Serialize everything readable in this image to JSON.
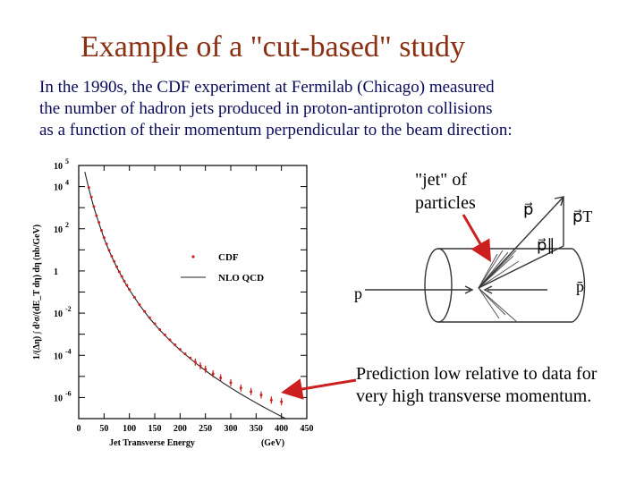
{
  "slide": {
    "title": "Example of a \"cut-based\" study",
    "intro_lines": [
      "In the 1990s, the CDF experiment at Fermilab (Chicago) measured",
      "the number of hadron jets produced in proton-antiproton collisions",
      "as a function of their momentum perpendicular to the beam direction:"
    ],
    "jet_label_lines": [
      "\"jet\" of",
      "particles"
    ],
    "prediction_lines": [
      "Prediction low relative to data for",
      "very high transverse momentum."
    ]
  },
  "colors": {
    "title": "#8b2e12",
    "intro": "#0a0a5a",
    "data": "#cc1f1f",
    "arrow": "#cc1f1f"
  },
  "sketch": {
    "labels": [
      "p",
      "p̄",
      "p⃗",
      "p⃗T",
      "p⃗∥"
    ]
  },
  "chart_data": {
    "type": "scatter",
    "xlabel": "Jet Transverse Energy",
    "xunit": "(GeV)",
    "ylabel": "1/(Δη) ∫ d²σ/(dE_T dη) dη  (nb/GeV)",
    "xlim": [
      0,
      450
    ],
    "ylim_log10": [
      -7,
      5
    ],
    "xticks": [
      0,
      50,
      100,
      150,
      200,
      250,
      300,
      350,
      400,
      450
    ],
    "ytick_labels": [
      {
        "exp": 5,
        "mant": "10",
        "sup": "5"
      },
      {
        "exp": 4,
        "mant": "10",
        "sup": "4"
      },
      {
        "exp": 2,
        "mant": "10",
        "sup": "2"
      },
      {
        "exp": 0,
        "mant": "1",
        "sup": ""
      },
      {
        "exp": -2,
        "mant": "10",
        "sup": "-2"
      },
      {
        "exp": -4,
        "mant": "10",
        "sup": "-4"
      },
      {
        "exp": -6,
        "mant": "10",
        "sup": "-6"
      }
    ],
    "legend": {
      "position": "top-right",
      "data_label": "CDF",
      "curve_label": "NLO QCD"
    },
    "series": [
      {
        "name": "CDF",
        "x": [
          20,
          25,
          30,
          35,
          40,
          45,
          50,
          55,
          60,
          65,
          70,
          75,
          80,
          85,
          90,
          95,
          100,
          110,
          120,
          130,
          140,
          150,
          160,
          170,
          180,
          190,
          200,
          210,
          220,
          230,
          240,
          250,
          265,
          280,
          300,
          320,
          340,
          360,
          380,
          400
        ],
        "log10_y": [
          3.95,
          3.5,
          3.05,
          2.62,
          2.3,
          1.92,
          1.58,
          1.28,
          0.98,
          0.7,
          0.45,
          0.2,
          -0.04,
          -0.26,
          -0.48,
          -0.68,
          -0.88,
          -1.25,
          -1.6,
          -1.92,
          -2.22,
          -2.5,
          -2.78,
          -3.03,
          -3.27,
          -3.5,
          -3.72,
          -3.93,
          -4.12,
          -4.32,
          -4.5,
          -4.66,
          -4.88,
          -5.07,
          -5.3,
          -5.55,
          -5.72,
          -5.88,
          -6.12,
          -6.2
        ]
      },
      {
        "name": "NLO QCD",
        "x": [
          12,
          20,
          30,
          40,
          50,
          60,
          70,
          80,
          90,
          100,
          120,
          140,
          160,
          180,
          200,
          220,
          240,
          260,
          280,
          300,
          320,
          340,
          360,
          380,
          400,
          410
        ],
        "log10_y": [
          4.7,
          3.9,
          3.0,
          2.25,
          1.55,
          0.95,
          0.42,
          -0.06,
          -0.5,
          -0.9,
          -1.62,
          -2.25,
          -2.8,
          -3.3,
          -3.75,
          -4.16,
          -4.54,
          -4.9,
          -5.23,
          -5.54,
          -5.84,
          -6.12,
          -6.39,
          -6.65,
          -6.9,
          -7.02
        ]
      }
    ]
  }
}
